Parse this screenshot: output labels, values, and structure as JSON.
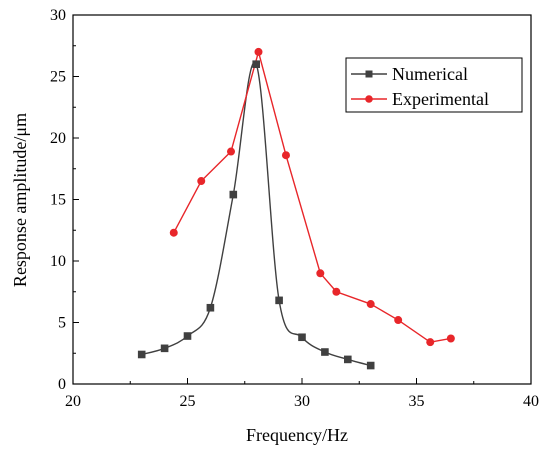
{
  "chart_data": {
    "type": "line",
    "xlabel": "Frequency/Hz",
    "ylabel": "Response amplitude/μm",
    "xlim": [
      20,
      40
    ],
    "ylim": [
      0,
      30
    ],
    "x_ticks": [
      20,
      25,
      30,
      35,
      40
    ],
    "y_ticks": [
      0,
      5,
      10,
      15,
      20,
      25,
      30
    ],
    "legend_position": "top-right",
    "grid": false,
    "series": [
      {
        "name": "Numerical",
        "color": "#404040",
        "marker": "square",
        "smooth": true,
        "x": [
          23,
          24,
          25,
          26,
          27,
          28,
          29,
          30,
          31,
          32,
          33
        ],
        "y": [
          2.4,
          2.9,
          3.9,
          6.2,
          15.4,
          26.0,
          6.8,
          3.8,
          2.6,
          2.0,
          1.5
        ]
      },
      {
        "name": "Experimental",
        "color": "#e8262a",
        "marker": "circle",
        "smooth": false,
        "x": [
          24.4,
          25.6,
          26.9,
          28.1,
          29.3,
          30.8,
          31.5,
          33.0,
          34.2,
          35.6,
          36.5
        ],
        "y": [
          12.3,
          16.5,
          18.9,
          27.0,
          18.6,
          9.0,
          7.5,
          6.5,
          5.2,
          3.4,
          3.7
        ]
      }
    ]
  }
}
